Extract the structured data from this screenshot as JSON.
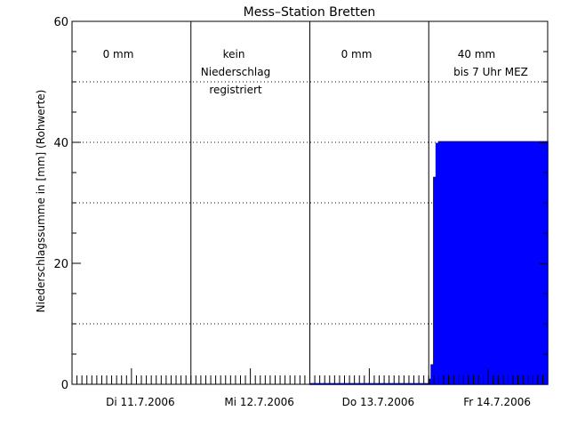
{
  "chart_data": {
    "type": "area",
    "title": "Mess–Station Bretten",
    "ylabel": "Niederschlagssumme in [mm] (Rohwerte)",
    "xlabel": "",
    "ylim": [
      0,
      60
    ],
    "yticks": [
      0,
      20,
      40,
      60
    ],
    "y_dotted_gridlines": [
      10,
      30,
      40,
      50
    ],
    "xlim_days": [
      0,
      4
    ],
    "day_labels": [
      "Di 11.7.2006",
      "Mi 12.7.2006",
      "Do 13.7.2006",
      "Fr 14.7.2006"
    ],
    "day_annotations": [
      {
        "day": 0,
        "lines": [
          "0 mm"
        ]
      },
      {
        "day": 1,
        "lines": [
          "kein",
          "Niederschlag",
          "registriert"
        ]
      },
      {
        "day": 2,
        "lines": [
          "0 mm"
        ]
      },
      {
        "day": 3,
        "lines": [
          "40 mm",
          "bis 7 Uhr MEZ"
        ]
      }
    ],
    "series": [
      {
        "color": "#0000ff",
        "x_hours": [
          48,
          72,
          72,
          72.5,
          72.5,
          73,
          73,
          73.5,
          73.5,
          74,
          74,
          76,
          76,
          96
        ],
        "values": [
          0.1,
          0.1,
          0.8,
          0.8,
          3.2,
          3.2,
          34.2,
          34.2,
          39.8,
          39.8,
          40.1,
          40.1,
          40.1,
          40.1
        ]
      }
    ]
  }
}
